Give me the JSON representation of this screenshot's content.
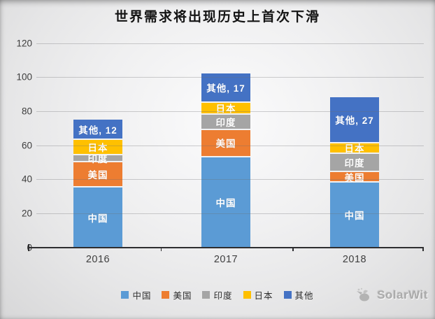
{
  "title": "世界需求将出现历史上首次下滑",
  "chart_data": {
    "type": "bar",
    "stacked": true,
    "title": "世界需求将出现历史上首次下滑",
    "xlabel": "",
    "ylabel": "",
    "ylim": [
      0,
      120
    ],
    "yticks": [
      0,
      20,
      40,
      60,
      80,
      100,
      120
    ],
    "grid": true,
    "legend_position": "bottom",
    "categories": [
      "2016",
      "2017",
      "2018"
    ],
    "series": [
      {
        "name": "中国",
        "color": "#5B9BD5",
        "values": [
          35,
          53,
          38
        ]
      },
      {
        "name": "美国",
        "color": "#ED7D31",
        "values": [
          15,
          16,
          6
        ]
      },
      {
        "name": "印度",
        "color": "#A5A5A5",
        "values": [
          4,
          9,
          11
        ]
      },
      {
        "name": "日本",
        "color": "#FFC000",
        "values": [
          9,
          7,
          6
        ]
      },
      {
        "name": "其他",
        "color": "#4472C4",
        "values": [
          12,
          17,
          27
        ]
      }
    ],
    "totals": [
      75,
      102,
      88
    ],
    "top_segment_labels": [
      "其他,  12",
      "其他,  17",
      "其他,  27"
    ],
    "segment_name_labels": [
      "中国",
      "美国",
      "印度",
      "日本"
    ]
  },
  "watermark": {
    "text": "SolarWit"
  }
}
